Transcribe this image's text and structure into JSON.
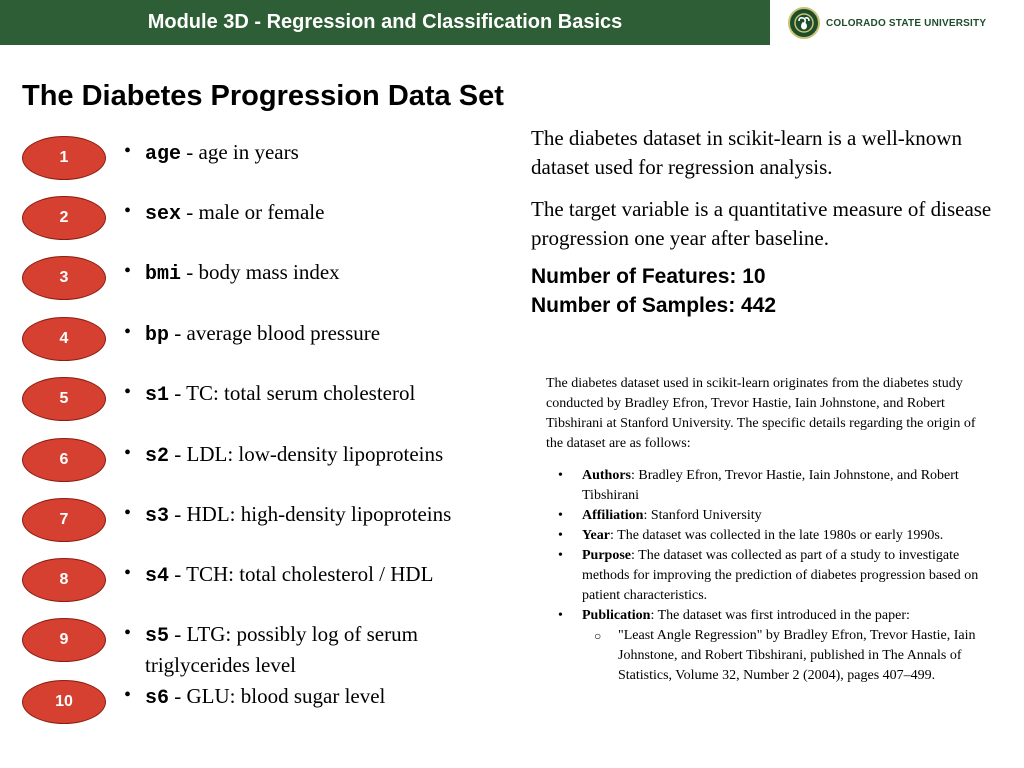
{
  "header": {
    "module_title": "Module  3D - Regression and Classification Basics",
    "university": "COLORADO STATE UNIVERSITY",
    "brand_color": "#2e5e36"
  },
  "title": "The Diabetes Progression Data Set",
  "features": [
    {
      "num": "1",
      "code": "age",
      "desc": " - age in years"
    },
    {
      "num": "2",
      "code": "sex",
      "desc": " - male or female"
    },
    {
      "num": "3",
      "code": "bmi",
      "desc": " - body mass index"
    },
    {
      "num": "4",
      "code": "bp",
      "desc": " - average blood pressure"
    },
    {
      "num": "5",
      "code": "s1",
      "desc": " - TC: total serum cholesterol"
    },
    {
      "num": "6",
      "code": "s2",
      "desc": " - LDL: low-density lipoproteins"
    },
    {
      "num": "7",
      "code": "s3",
      "desc": " - HDL: high-density lipoproteins"
    },
    {
      "num": "8",
      "code": "s4",
      "desc": " - TCH: total cholesterol / HDL"
    },
    {
      "num": "9",
      "code": "s5",
      "desc": " - LTG: possibly log of serum triglycerides level"
    },
    {
      "num": "10",
      "code": "s6",
      "desc": " - GLU: blood sugar level"
    }
  ],
  "right": {
    "para1": "The diabetes dataset in scikit-learn is a well-known dataset used for regression analysis.",
    "para2": "The target variable is a quantitative measure of disease progression one year after baseline.",
    "features_count": "Number of Features: 10",
    "samples_count": "Number of Samples: 442",
    "origin_intro": "The diabetes dataset used in scikit-learn originates from the diabetes study conducted by Bradley Efron, Trevor Hastie, Iain Johnstone, and Robert Tibshirani at Stanford University. The specific details regarding the origin of the dataset are as follows:",
    "details": [
      {
        "label": "Authors",
        "text": ": Bradley Efron, Trevor Hastie, Iain Johnstone, and Robert Tibshirani"
      },
      {
        "label": "Affiliation",
        "text": ": Stanford University"
      },
      {
        "label": "Year",
        "text": ": The dataset was collected in the late 1980s or early 1990s."
      },
      {
        "label": "Purpose",
        "text": ": The dataset was collected as part of a study to investigate methods for improving the prediction of diabetes progression based on patient characteristics."
      },
      {
        "label": "Publication",
        "text": ": The dataset was first introduced in the paper:"
      }
    ],
    "publication_ref": "\"Least Angle Regression\" by Bradley Efron, Trevor Hastie, Iain Johnstone, and Robert Tibshirani, published in The Annals of Statistics, Volume 32, Number 2 (2004), pages 407–499."
  }
}
